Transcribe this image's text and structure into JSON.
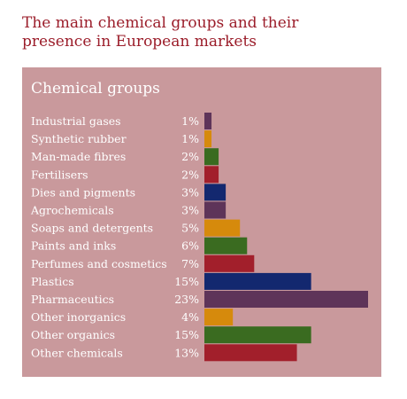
{
  "title_line1": "The main chemical groups and their",
  "title_line2": "presence in European markets",
  "colors": {
    "title": "#9b1d2a",
    "panel_bg": "#c9999c",
    "purple": "#5e3459",
    "orange": "#d68a0c",
    "green": "#3a6b20",
    "red": "#a21f2b",
    "navy": "#13286f"
  },
  "chart_data": {
    "type": "bar",
    "orientation": "horizontal",
    "title": "Chemical groups",
    "value_suffix": "%",
    "categories": [
      "Industrial gases",
      "Synthetic rubber",
      "Man-made fibres",
      "Fertilisers",
      "Dies and pigments",
      "Agrochemicals",
      "Soaps and detergents",
      "Paints and inks",
      "Perfumes and cosmetics",
      "Plastics",
      "Pharmaceutics",
      "Other inorganics",
      "Other organics",
      "Other chemicals"
    ],
    "values": [
      1,
      1,
      2,
      2,
      3,
      3,
      5,
      6,
      7,
      15,
      23,
      4,
      15,
      13
    ],
    "value_labels": [
      "1%",
      "1%",
      "2%",
      "2%",
      "3%",
      "3%",
      "5%",
      "6%",
      "7%",
      "15%",
      "23%",
      "4%",
      "15%",
      "13%"
    ],
    "bar_colors": [
      "#5e3459",
      "#d68a0c",
      "#3a6b20",
      "#a21f2b",
      "#13286f",
      "#5e3459",
      "#d68a0c",
      "#3a6b20",
      "#a21f2b",
      "#13286f",
      "#5e3459",
      "#d68a0c",
      "#3a6b20",
      "#a21f2b"
    ],
    "xlim": [
      0,
      23
    ],
    "grid": false,
    "legend": "none"
  }
}
